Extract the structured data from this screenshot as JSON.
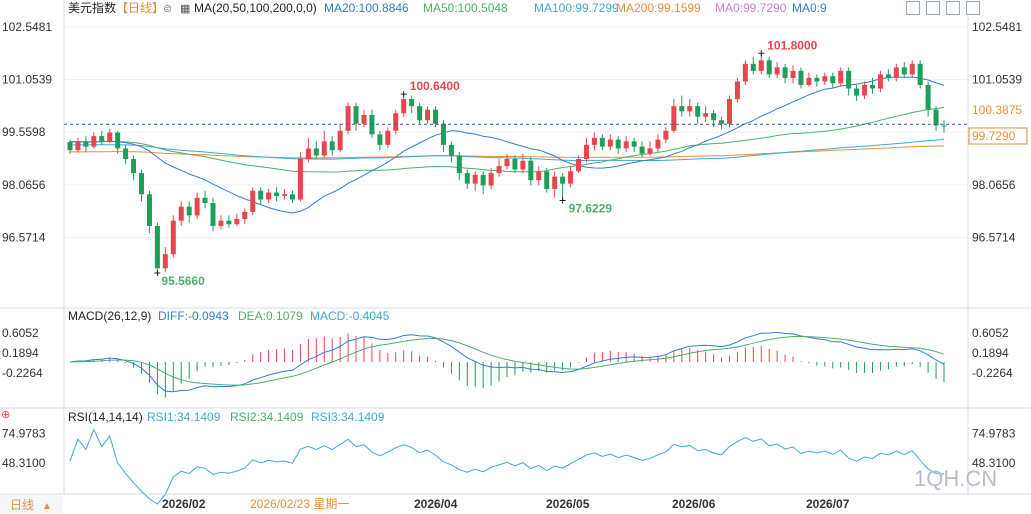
{
  "header": {
    "title": "美元指数",
    "period": "【日线】",
    "ma_label": "MA(20,50,100,200,0,0)",
    "ma_values": [
      {
        "text": "MA20:100.8846",
        "color": "#2e7fd6"
      },
      {
        "text": "MA50:100.5048",
        "color": "#4caf6e"
      },
      {
        "text": "MA100:99.7299",
        "color": "#3fa8d6"
      },
      {
        "text": "MA200:99.1599",
        "color": "#e8903a"
      },
      {
        "text": "MA0:99.7290",
        "color": "#d47bc8"
      },
      {
        "text": "MA0:9",
        "color": "#2e7fd6"
      }
    ]
  },
  "macd_header": {
    "label": "MACD(26,12,9)",
    "diff": "DIFF:-0.0943",
    "dea": "DEA:0.1079",
    "macd": "MACD:-0.4045"
  },
  "rsi_header": {
    "label": "RSI(14,14,14)",
    "rsi1": "RSI1:34.1409",
    "rsi2": "RSI2:34.1409",
    "rsi3": "RSI3:34.1409"
  },
  "price_axis": {
    "ticks": [
      "102.5481",
      "101.0539",
      "99.5598",
      "98.0656",
      "96.5714"
    ],
    "current": "100.3875",
    "last": "99.7290"
  },
  "macd_axis": {
    "ticks": [
      "0.6052",
      "0.1894",
      "-0.2264"
    ]
  },
  "rsi_axis": {
    "ticks": [
      "74.9783",
      "48.3100"
    ]
  },
  "time_axis": {
    "labels": [
      "2026/02",
      "2026/04",
      "2026/05",
      "2026/06",
      "2026/07"
    ],
    "cursor": "2026/02/23 星期一"
  },
  "footer": {
    "period_button": "日线",
    "watermark": "1QH.CN"
  },
  "annotations": {
    "high1": "100.6400",
    "high2": "101.8000",
    "low1": "95.5660",
    "low2": "97.6229"
  },
  "colors": {
    "up": "#e8464e",
    "down": "#1e9e5a",
    "ma20": "#2e7fd6",
    "ma50": "#4caf6e",
    "ma100": "#3fa8d6",
    "ma200": "#e8903a"
  },
  "chart_data": {
    "type": "candlestick",
    "y_range": [
      94.8,
      102.8
    ],
    "ticks": [
      102.5481,
      101.0539,
      99.5598,
      98.0656,
      96.5714
    ],
    "reference_line": 99.729,
    "candles": [
      [
        99.28,
        99.05,
        99.35,
        98.95
      ],
      [
        99.05,
        99.3,
        99.4,
        98.98
      ],
      [
        99.3,
        99.15,
        99.45,
        99.0
      ],
      [
        99.15,
        99.45,
        99.55,
        99.1
      ],
      [
        99.45,
        99.3,
        99.6,
        99.2
      ],
      [
        99.3,
        99.55,
        99.65,
        99.25
      ],
      [
        99.55,
        99.1,
        99.6,
        98.95
      ],
      [
        99.1,
        98.8,
        99.2,
        98.65
      ],
      [
        98.8,
        98.4,
        98.9,
        98.2
      ],
      [
        98.4,
        97.8,
        98.5,
        97.6
      ],
      [
        97.8,
        96.9,
        97.9,
        96.7
      ],
      [
        96.9,
        95.7,
        97.0,
        95.57
      ],
      [
        95.7,
        96.1,
        96.3,
        95.6
      ],
      [
        96.1,
        97.05,
        97.2,
        96.0
      ],
      [
        97.05,
        97.45,
        97.6,
        96.9
      ],
      [
        97.45,
        97.2,
        97.6,
        97.0
      ],
      [
        97.2,
        97.7,
        97.85,
        97.1
      ],
      [
        97.7,
        97.55,
        97.9,
        97.4
      ],
      [
        97.55,
        96.9,
        97.7,
        96.75
      ],
      [
        96.9,
        97.05,
        97.2,
        96.8
      ],
      [
        97.05,
        96.95,
        97.2,
        96.85
      ],
      [
        96.95,
        97.1,
        97.25,
        96.9
      ],
      [
        97.1,
        97.3,
        97.4,
        96.95
      ],
      [
        97.3,
        97.9,
        98.0,
        97.2
      ],
      [
        97.9,
        97.65,
        98.0,
        97.5
      ],
      [
        97.65,
        97.85,
        97.95,
        97.55
      ],
      [
        97.85,
        97.75,
        98.0,
        97.6
      ],
      [
        97.75,
        97.8,
        97.95,
        97.65
      ],
      [
        97.8,
        97.65,
        97.9,
        97.55
      ],
      [
        97.65,
        98.8,
        99.0,
        97.6
      ],
      [
        98.8,
        99.1,
        99.4,
        98.7
      ],
      [
        99.1,
        98.9,
        99.3,
        98.8
      ],
      [
        98.9,
        99.3,
        99.6,
        98.85
      ],
      [
        99.3,
        99.05,
        99.45,
        98.9
      ],
      [
        99.05,
        99.6,
        99.8,
        99.0
      ],
      [
        99.6,
        100.3,
        100.4,
        99.5
      ],
      [
        100.3,
        99.8,
        100.4,
        99.6
      ],
      [
        99.8,
        100.05,
        100.2,
        99.7
      ],
      [
        100.05,
        99.5,
        100.2,
        99.4
      ],
      [
        99.5,
        99.2,
        99.6,
        99.05
      ],
      [
        99.2,
        99.6,
        99.7,
        99.1
      ],
      [
        99.6,
        100.1,
        100.2,
        99.5
      ],
      [
        100.1,
        100.5,
        100.64,
        100.0
      ],
      [
        100.5,
        100.3,
        100.6,
        100.1
      ],
      [
        100.3,
        99.9,
        100.4,
        99.8
      ],
      [
        99.9,
        100.2,
        100.3,
        99.8
      ],
      [
        100.2,
        99.8,
        100.3,
        99.7
      ],
      [
        99.8,
        99.2,
        99.9,
        99.0
      ],
      [
        99.2,
        98.9,
        99.3,
        98.7
      ],
      [
        98.9,
        98.4,
        99.0,
        98.2
      ],
      [
        98.4,
        98.1,
        98.5,
        97.95
      ],
      [
        98.1,
        98.35,
        98.45,
        97.9
      ],
      [
        98.35,
        98.05,
        98.45,
        97.8
      ],
      [
        98.05,
        98.4,
        98.55,
        97.95
      ],
      [
        98.4,
        98.6,
        98.8,
        98.3
      ],
      [
        98.6,
        98.8,
        98.95,
        98.5
      ],
      [
        98.8,
        98.5,
        98.9,
        98.4
      ],
      [
        98.5,
        98.75,
        98.95,
        98.4
      ],
      [
        98.75,
        98.2,
        98.85,
        98.05
      ],
      [
        98.2,
        98.45,
        98.6,
        98.05
      ],
      [
        98.45,
        97.95,
        98.55,
        97.85
      ],
      [
        97.95,
        98.3,
        98.45,
        97.7
      ],
      [
        98.3,
        98.1,
        98.4,
        97.63
      ],
      [
        98.1,
        98.45,
        98.6,
        98.0
      ],
      [
        98.45,
        98.8,
        98.9,
        98.4
      ],
      [
        98.8,
        99.2,
        99.4,
        98.7
      ],
      [
        99.2,
        99.4,
        99.55,
        99.05
      ],
      [
        99.4,
        99.15,
        99.5,
        99.05
      ],
      [
        99.15,
        99.35,
        99.5,
        99.05
      ],
      [
        99.35,
        99.1,
        99.45,
        98.95
      ],
      [
        99.1,
        99.3,
        99.45,
        99.0
      ],
      [
        99.3,
        99.15,
        99.4,
        99.0
      ],
      [
        99.15,
        98.95,
        99.3,
        98.85
      ],
      [
        98.95,
        99.1,
        99.3,
        98.9
      ],
      [
        99.1,
        99.35,
        99.5,
        99.0
      ],
      [
        99.35,
        99.6,
        99.7,
        99.25
      ],
      [
        99.6,
        100.3,
        100.5,
        99.55
      ],
      [
        100.3,
        100.15,
        100.6,
        100.0
      ],
      [
        100.15,
        100.3,
        100.5,
        100.0
      ],
      [
        100.3,
        100.0,
        100.4,
        99.8
      ],
      [
        100.0,
        100.1,
        100.3,
        99.85
      ],
      [
        100.1,
        99.9,
        100.2,
        99.7
      ],
      [
        99.9,
        99.8,
        100.0,
        99.65
      ],
      [
        99.8,
        100.5,
        100.6,
        99.7
      ],
      [
        100.5,
        101.0,
        101.1,
        100.4
      ],
      [
        101.0,
        101.5,
        101.6,
        100.9
      ],
      [
        101.5,
        101.3,
        101.7,
        101.2
      ],
      [
        101.3,
        101.6,
        101.8,
        101.2
      ],
      [
        101.6,
        101.2,
        101.7,
        101.1
      ],
      [
        101.2,
        101.4,
        101.55,
        101.1
      ],
      [
        101.4,
        101.1,
        101.5,
        100.95
      ],
      [
        101.1,
        101.3,
        101.45,
        100.95
      ],
      [
        101.3,
        100.9,
        101.4,
        100.8
      ],
      [
        100.9,
        101.1,
        101.25,
        100.85
      ],
      [
        101.1,
        101.0,
        101.2,
        100.85
      ],
      [
        101.0,
        101.15,
        101.25,
        100.9
      ],
      [
        101.15,
        100.95,
        101.25,
        100.8
      ],
      [
        100.95,
        101.3,
        101.4,
        100.85
      ],
      [
        101.3,
        100.8,
        101.4,
        100.6
      ],
      [
        100.8,
        100.6,
        100.9,
        100.45
      ],
      [
        100.6,
        100.9,
        101.0,
        100.5
      ],
      [
        100.9,
        100.8,
        101.1,
        100.65
      ],
      [
        100.8,
        101.2,
        101.3,
        100.7
      ],
      [
        101.2,
        101.1,
        101.35,
        101.0
      ],
      [
        101.1,
        101.4,
        101.5,
        101.0
      ],
      [
        101.4,
        101.2,
        101.55,
        101.1
      ],
      [
        101.2,
        101.5,
        101.6,
        101.1
      ],
      [
        101.5,
        100.9,
        101.6,
        100.8
      ],
      [
        100.9,
        100.2,
        101.0,
        100.0
      ],
      [
        100.2,
        99.75,
        100.3,
        99.6
      ],
      [
        99.75,
        99.73,
        99.9,
        99.55
      ]
    ]
  }
}
